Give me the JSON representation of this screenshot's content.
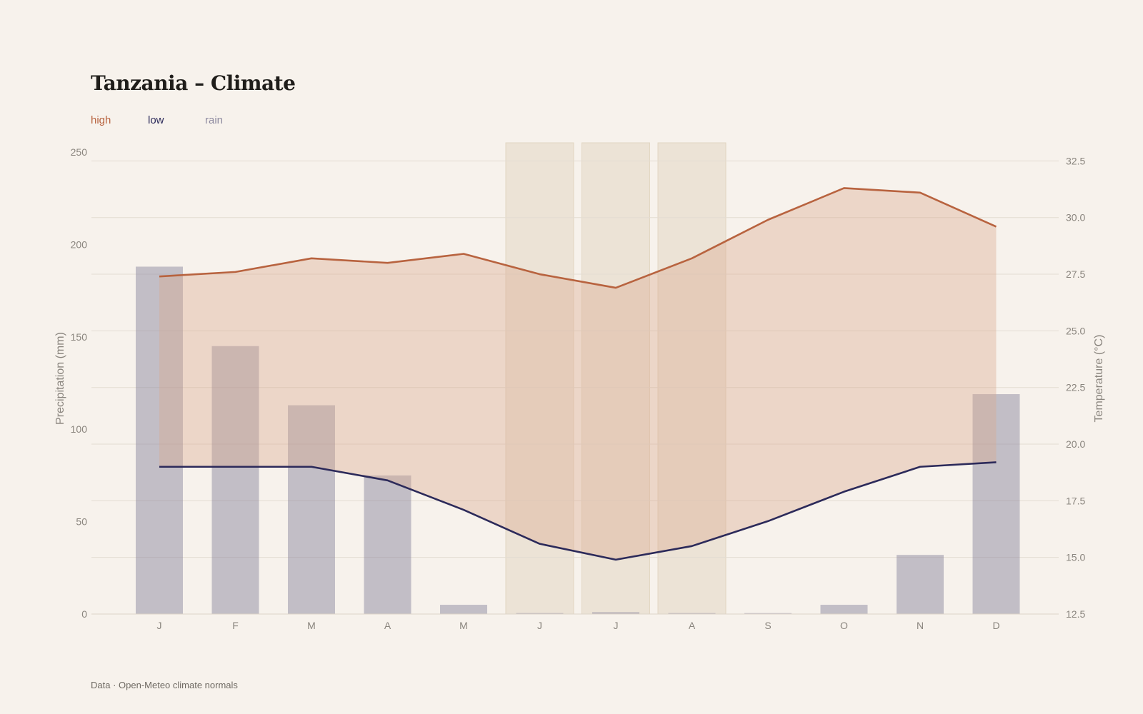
{
  "title": "Tanzania – Climate",
  "source": "Data · Open-Meteo climate normals",
  "colors": {
    "high": "#b8633f",
    "low": "#2c2a5a",
    "rain": "#8e8aa0",
    "area": "#e8d3c6",
    "dry_band": "#ece3d6",
    "background": "#f7f2ec"
  },
  "legend": [
    {
      "label": "high",
      "color": "#b8633f"
    },
    {
      "label": "low",
      "color": "#2c2a5a"
    },
    {
      "label": "rain",
      "color": "#8e8aa0"
    }
  ],
  "chart_data": {
    "type": "bar",
    "title": "Tanzania – Climate",
    "categories": [
      "J",
      "F",
      "M",
      "A",
      "M",
      "J",
      "J",
      "A",
      "S",
      "O",
      "N",
      "D"
    ],
    "series": [
      {
        "name": "rain",
        "type": "bar",
        "axis": "left",
        "values": [
          188,
          145,
          113,
          75,
          5,
          0.5,
          1,
          0.5,
          0.5,
          5,
          32,
          119
        ]
      },
      {
        "name": "high",
        "type": "line",
        "axis": "right",
        "values": [
          27.4,
          27.6,
          28.2,
          28.0,
          28.4,
          27.5,
          26.9,
          28.2,
          29.9,
          31.3,
          31.1,
          29.6
        ]
      },
      {
        "name": "low",
        "type": "line",
        "axis": "right",
        "values": [
          19.0,
          19.0,
          19.0,
          18.4,
          17.1,
          15.6,
          14.9,
          15.5,
          16.6,
          17.9,
          19.0,
          19.2
        ]
      }
    ],
    "highlighted_months": [
      5,
      6,
      7
    ],
    "ylabel_left": "Precipitation (mm)",
    "ylabel_right": "Temperature (°C)",
    "ylim_left": [
      0,
      250
    ],
    "ylim_right": [
      12.5,
      33.3
    ],
    "yticks_left": [
      "0",
      "50",
      "100",
      "150",
      "200",
      "250"
    ],
    "yticks_right": [
      "12.5",
      "15.0",
      "17.5",
      "20.0",
      "22.5",
      "25.0",
      "27.5",
      "30.0",
      "32.5"
    ],
    "grid": true
  }
}
